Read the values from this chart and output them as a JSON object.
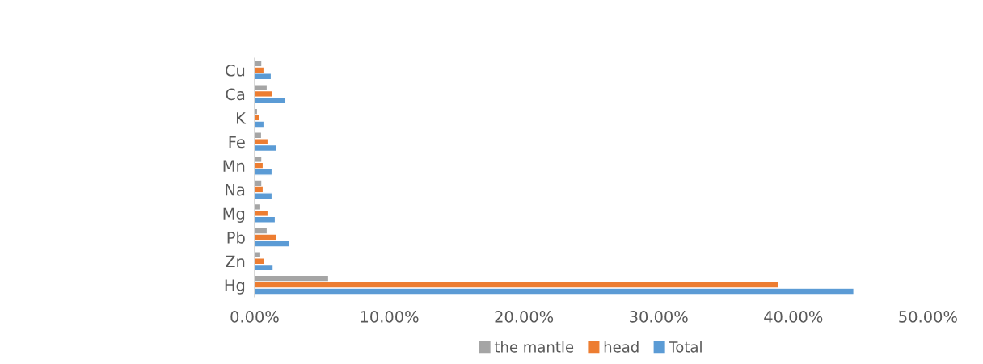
{
  "chart_data": {
    "type": "bar",
    "orientation": "horizontal",
    "categories": [
      "Cu",
      "Ca",
      "K",
      "Fe",
      "Mn",
      "Na",
      "Mg",
      "Pb",
      "Zn",
      "Hg"
    ],
    "series": [
      {
        "name": "the mantle",
        "color": "#a5a5a5",
        "values": [
          0.54,
          0.94,
          0.22,
          0.52,
          0.54,
          0.54,
          0.46,
          0.94,
          0.46,
          5.5
        ]
      },
      {
        "name": "head",
        "color": "#ed7d31",
        "values": [
          0.7,
          1.32,
          0.4,
          1.0,
          0.64,
          0.64,
          1.0,
          1.62,
          0.76,
          38.9
        ]
      },
      {
        "name": "Total",
        "color": "#5b9bd5",
        "values": [
          1.24,
          2.3,
          0.7,
          1.62,
          1.3,
          1.3,
          1.54,
          2.6,
          1.38,
          44.5
        ]
      }
    ],
    "xlim": [
      0,
      50
    ],
    "xticks": [
      {
        "value": 0,
        "label": "0.00%"
      },
      {
        "value": 10,
        "label": "10.00%"
      },
      {
        "value": 20,
        "label": "20.00%"
      },
      {
        "value": 30,
        "label": "30.00%"
      },
      {
        "value": 40,
        "label": "40.00%"
      },
      {
        "value": 50,
        "label": "50.00%"
      }
    ],
    "grid": false,
    "legend": "bottom"
  }
}
